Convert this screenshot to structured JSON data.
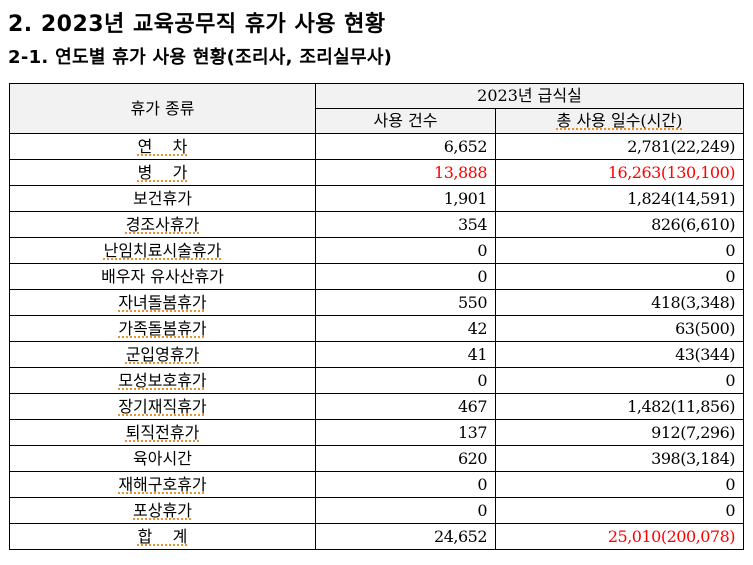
{
  "document": {
    "title": "2. 2023년 교육공무직 휴가 사용 현황",
    "subtitle": "2-1. 연도별 휴가 사용 현황(조리사, 조리실무사)"
  },
  "table": {
    "header": {
      "type_label": "휴가 종류",
      "group_label": "2023년 급식실",
      "count_label": "사용 건수",
      "days_label": "총 사용 일수(시간)"
    },
    "highlight_color": "#ff0000",
    "rows": [
      {
        "type": "연    차",
        "count": "6,652",
        "days": "2,781(22,249)"
      },
      {
        "type": "병    가",
        "count": "13,888",
        "days": "16,263(130,100)",
        "count_red": true,
        "days_red": true
      },
      {
        "type": "보건휴가",
        "count": "1,901",
        "days": "1,824(14,591)"
      },
      {
        "type": "경조사휴가",
        "count": "354",
        "days": "826(6,610)"
      },
      {
        "type": "난임치료시술휴가",
        "count": "0",
        "days": "0"
      },
      {
        "type": "배우자 유사산휴가",
        "count": "0",
        "days": "0"
      },
      {
        "type": "자녀돌봄휴가",
        "count": "550",
        "days": "418(3,348)"
      },
      {
        "type": "가족돌봄휴가",
        "count": "42",
        "days": "63(500)"
      },
      {
        "type": "군입영휴가",
        "count": "41",
        "days": "43(344)"
      },
      {
        "type": "모성보호휴가",
        "count": "0",
        "days": "0"
      },
      {
        "type": "장기재직휴가",
        "count": "467",
        "days": "1,482(11,856)"
      },
      {
        "type": "퇴직전휴가",
        "count": "137",
        "days": "912(7,296)"
      },
      {
        "type": "육아시간",
        "count": "620",
        "days": "398(3,184)"
      },
      {
        "type": "재해구호휴가",
        "count": "0",
        "days": "0"
      },
      {
        "type": "포상휴가",
        "count": "0",
        "days": "0"
      },
      {
        "type": "합    계",
        "count": "24,652",
        "days": "25,010(200,078)",
        "days_red": true
      }
    ]
  }
}
